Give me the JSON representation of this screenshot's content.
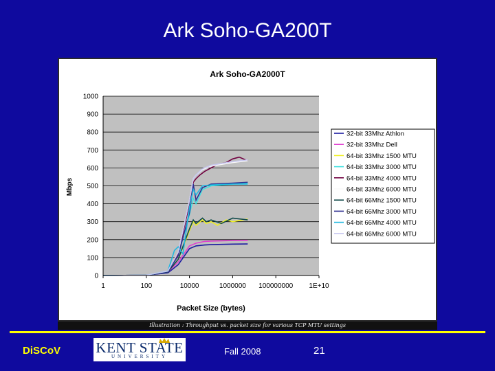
{
  "slide": {
    "title": "Ark Soho-GA200T",
    "caption": "Illustration : Throughput vs. packet size for various TCP MTU settings",
    "footer": {
      "brand": "DiSCoV",
      "logo_text": "KENT STATE",
      "logo_subtext": "UNIVERSITY",
      "date": "Fall 2008",
      "page": "21"
    }
  },
  "colors": {
    "background": "#0f0a9e",
    "footer_rule": "#ffff00",
    "plot_area": "#c0c0c0"
  },
  "chart_data": {
    "type": "line",
    "title": "Ark Soho-GA2000T",
    "xlabel": "Packet Size (bytes)",
    "ylabel": "Mbps",
    "x_scale": "log",
    "x_ticks": [
      {
        "value": 1,
        "label": "1"
      },
      {
        "value": 100,
        "label": "100"
      },
      {
        "value": 10000,
        "label": "10000"
      },
      {
        "value": 1000000,
        "label": "1000000"
      },
      {
        "value": 100000000,
        "label": "100000000"
      },
      {
        "value": 10000000000,
        "label": "1E+10"
      }
    ],
    "xlim": [
      1,
      10000000000
    ],
    "ylim": [
      0,
      1000
    ],
    "y_ticks": [
      0,
      100,
      200,
      300,
      400,
      500,
      600,
      700,
      800,
      900,
      1000
    ],
    "grid": "horizontal",
    "legend": "right",
    "series": [
      {
        "name": "32-bit 33Mhz Athlon",
        "color": "#1a1aa0",
        "x": [
          1,
          100,
          1000,
          3000,
          10000,
          20000,
          50000,
          100000,
          1000000,
          5000000
        ],
        "y": [
          0,
          2,
          15,
          60,
          150,
          165,
          170,
          172,
          175,
          176
        ]
      },
      {
        "name": "32-bit 33Mhz Dell",
        "color": "#e040d0",
        "x": [
          1,
          100,
          1000,
          3000,
          10000,
          20000,
          50000,
          100000,
          1000000,
          5000000
        ],
        "y": [
          0,
          2,
          20,
          75,
          165,
          180,
          190,
          192,
          195,
          196
        ]
      },
      {
        "name": "64-bit 33Mhz 1500 MTU",
        "color": "#f0f020",
        "x": [
          1,
          100,
          1000,
          3000,
          10000,
          15000,
          20000,
          40000,
          60000,
          100000,
          200000,
          500000,
          1000000,
          5000000
        ],
        "y": [
          0,
          2,
          20,
          90,
          250,
          300,
          280,
          310,
          290,
          300,
          280,
          310,
          300,
          315
        ]
      },
      {
        "name": "64-bit 33Mhz 3000 MTU",
        "color": "#40e0e0",
        "x": [
          1,
          100,
          1000,
          3000,
          10000,
          15000,
          20000,
          40000,
          100000,
          1000000,
          5000000
        ],
        "y": [
          0,
          2,
          20,
          110,
          340,
          430,
          400,
          480,
          500,
          510,
          515
        ]
      },
      {
        "name": "64-bit 33Mhz 4000 MTU",
        "color": "#700040",
        "x": [
          1,
          100,
          1000,
          3000,
          10000,
          15000,
          20000,
          30000,
          50000,
          100000,
          200000,
          500000,
          1000000,
          2000000,
          5000000
        ],
        "y": [
          0,
          2,
          20,
          120,
          400,
          520,
          540,
          560,
          580,
          600,
          620,
          630,
          650,
          660,
          640
        ]
      },
      {
        "name": "64-bit 33Mhz 6000 MTU",
        "color": "#f8f8f8",
        "x": [
          1,
          100,
          1000,
          3000,
          10000,
          15000,
          20000,
          40000,
          100000,
          1000000,
          5000000
        ],
        "y": [
          0,
          2,
          25,
          130,
          420,
          540,
          560,
          590,
          610,
          630,
          640
        ]
      },
      {
        "name": "64-bit 66Mhz 1500 MTU",
        "color": "#104a4a",
        "x": [
          1,
          100,
          1000,
          3000,
          10000,
          15000,
          20000,
          40000,
          60000,
          100000,
          300000,
          1000000,
          5000000
        ],
        "y": [
          0,
          2,
          20,
          90,
          260,
          310,
          290,
          320,
          300,
          310,
          290,
          320,
          310
        ]
      },
      {
        "name": "64-bit 66Mhz 3000 MTU",
        "color": "#303090",
        "x": [
          1,
          100,
          1000,
          3000,
          10000,
          15000,
          20000,
          40000,
          100000,
          1000000,
          5000000
        ],
        "y": [
          0,
          2,
          22,
          110,
          350,
          510,
          420,
          490,
          510,
          515,
          520
        ]
      },
      {
        "name": "64-bit 66Mhz 4000 MTU",
        "color": "#20b8e0",
        "x": [
          1,
          100,
          1000,
          2000,
          3000,
          5000,
          10000,
          15000,
          20000,
          40000,
          100000,
          1000000,
          5000000
        ],
        "y": [
          0,
          2,
          25,
          140,
          160,
          120,
          380,
          480,
          450,
          500,
          505,
          510,
          510
        ]
      },
      {
        "name": "64-bit 66Mhz 6000 MTU",
        "color": "#c8c8f0",
        "x": [
          1,
          100,
          1000,
          3000,
          10000,
          15000,
          20000,
          40000,
          100000,
          1000000,
          5000000
        ],
        "y": [
          0,
          2,
          25,
          130,
          420,
          540,
          560,
          595,
          615,
          635,
          645
        ]
      }
    ]
  }
}
